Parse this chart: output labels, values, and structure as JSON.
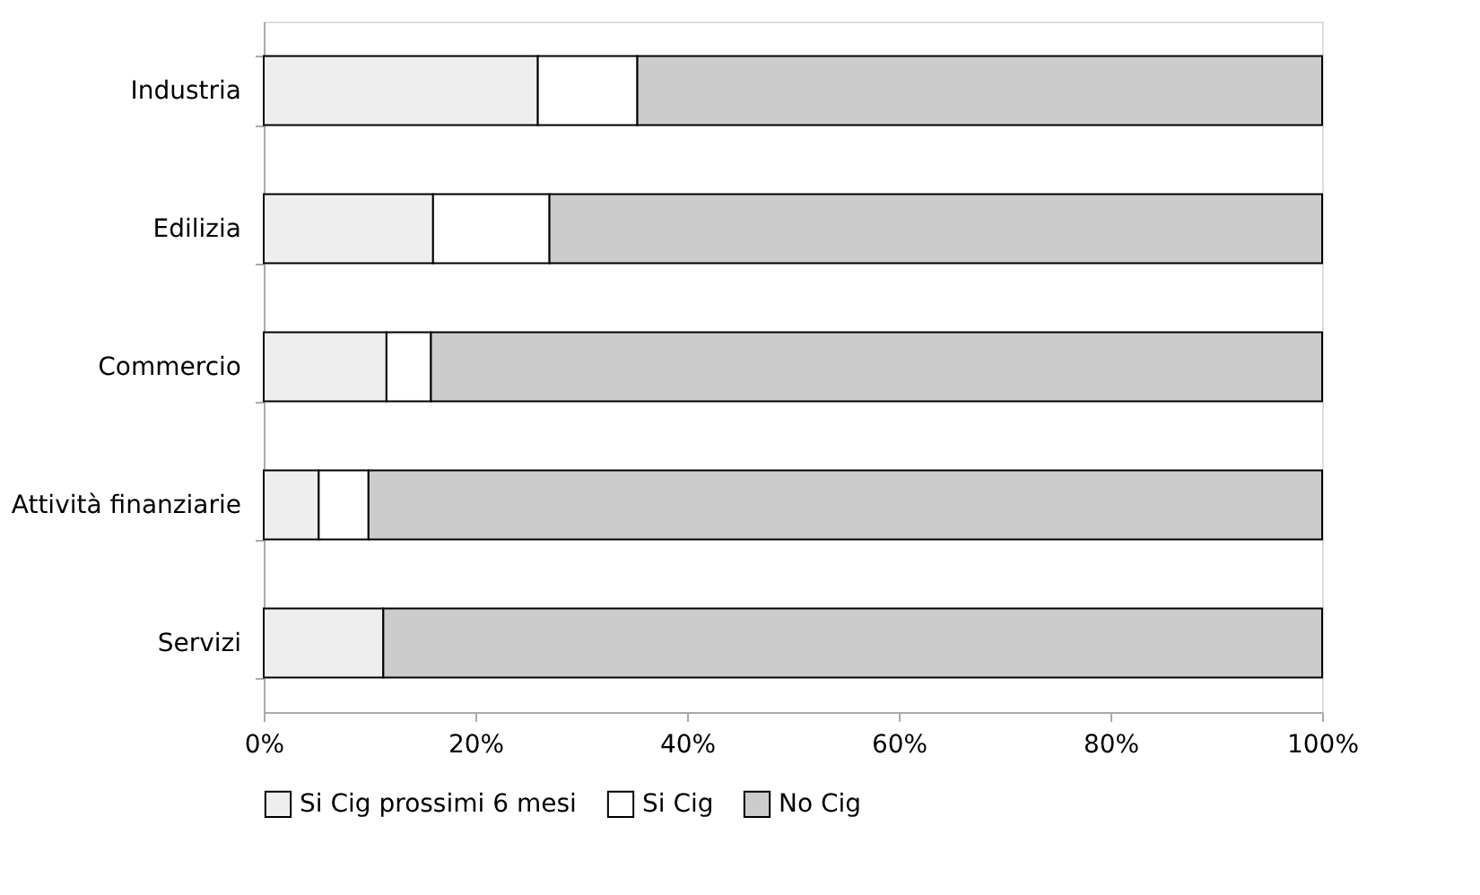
{
  "chart_data": {
    "type": "bar",
    "orientation": "horizontal",
    "stacked": true,
    "categories": [
      "Industria",
      "Edilizia",
      "Commercio",
      "Attività finanziarie",
      "Servizi"
    ],
    "series": [
      {
        "name": "Si Cig prossimi 6 mesi",
        "color": "#eeeeee",
        "values": [
          25.9,
          16.0,
          11.6,
          5.2,
          11.3
        ]
      },
      {
        "name": "Si Cig",
        "color": "#ffffff",
        "values": [
          9.4,
          11.0,
          4.2,
          4.7,
          null
        ]
      },
      {
        "name": "No Cig",
        "color": "#cccccc",
        "values": [
          64.7,
          73.0,
          84.2,
          90.1,
          88.7
        ]
      }
    ],
    "xlim": [
      0,
      100
    ],
    "xticks": [
      {
        "value": 0,
        "label": "0%"
      },
      {
        "value": 20,
        "label": "20%"
      },
      {
        "value": 40,
        "label": "40%"
      },
      {
        "value": 60,
        "label": "60%"
      },
      {
        "value": 80,
        "label": "80%"
      },
      {
        "value": 100,
        "label": "100%"
      }
    ],
    "grid": false,
    "legend": "bottom"
  }
}
